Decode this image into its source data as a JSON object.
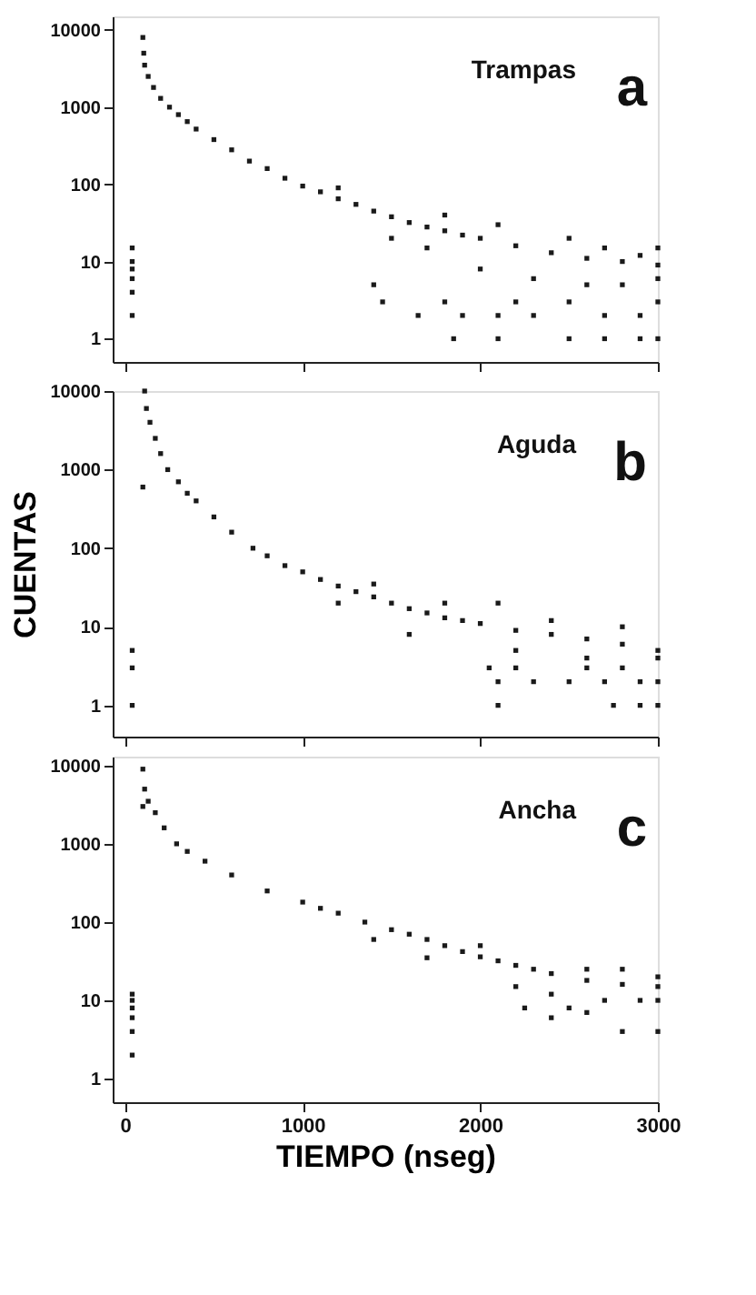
{
  "chart_data": [
    {
      "type": "scatter",
      "annotations": [
        "Trampas",
        "a"
      ],
      "xlim": [
        -70,
        3000
      ],
      "xticks": [
        {
          "value": 0,
          "label": null
        },
        {
          "value": 1000,
          "label": null
        },
        {
          "value": 2000,
          "label": null
        },
        {
          "value": 3000,
          "label": null
        }
      ],
      "ylim": [
        0.5,
        15000
      ],
      "yticks": [
        1,
        10,
        100,
        1000,
        10000
      ],
      "log": "y",
      "grid": false,
      "marker": "square",
      "tick_labels": "y",
      "series": [
        {
          "color": "#1a1a1a",
          "x": [
            100,
            105,
            110,
            130,
            160,
            200,
            250,
            300,
            350,
            400,
            500,
            600,
            700,
            800,
            900,
            1000,
            1100,
            1200,
            1300,
            1400,
            1500,
            1600,
            1700,
            1800,
            1900,
            2000,
            2200,
            2400,
            2600,
            2800,
            3000,
            1200,
            1500,
            1700,
            1800,
            2000,
            2100,
            2300,
            2500,
            2600,
            2700,
            2800,
            2900,
            3000,
            3000,
            1400,
            1450,
            1650,
            1800,
            1900,
            2100,
            2200,
            2300,
            2500,
            2700,
            2900,
            3000,
            1850,
            2100,
            2500,
            2700,
            2900,
            3000,
            40,
            40,
            40,
            40,
            40,
            40
          ],
          "values": [
            8000,
            5000,
            3500,
            2500,
            1800,
            1300,
            1000,
            800,
            650,
            520,
            380,
            280,
            200,
            160,
            120,
            95,
            80,
            65,
            55,
            45,
            38,
            32,
            28,
            25,
            22,
            20,
            16,
            13,
            11,
            10,
            9,
            90,
            20,
            15,
            40,
            8,
            30,
            6,
            20,
            5,
            15,
            5,
            12,
            15,
            6,
            5,
            3,
            2,
            3,
            2,
            2,
            3,
            2,
            3,
            2,
            2,
            3,
            1,
            1,
            1,
            1,
            1,
            1,
            15,
            10,
            8,
            6,
            4,
            2
          ]
        }
      ]
    },
    {
      "type": "scatter",
      "ylabel": "CUENTAS",
      "annotations": [
        "Aguda",
        "b"
      ],
      "xlim": [
        -70,
        3000
      ],
      "xticks": [
        {
          "value": 0,
          "label": null
        },
        {
          "value": 1000,
          "label": null
        },
        {
          "value": 2000,
          "label": null
        },
        {
          "value": 3000,
          "label": null
        }
      ],
      "ylim": [
        0.4,
        10000
      ],
      "yticks": [
        1,
        10,
        100,
        1000,
        10000
      ],
      "log": "y",
      "grid": false,
      "marker": "square",
      "tick_labels": "y",
      "series": [
        {
          "color": "#1a1a1a",
          "x": [
            110,
            120,
            140,
            170,
            200,
            240,
            300,
            350,
            400,
            500,
            600,
            720,
            800,
            900,
            1000,
            1100,
            1200,
            1300,
            1400,
            1500,
            1600,
            1700,
            1800,
            1900,
            2000,
            2200,
            2400,
            2600,
            2800,
            3000,
            1200,
            1600,
            1800,
            2100,
            2200,
            2400,
            2600,
            2800,
            3000,
            1400,
            2050,
            2100,
            2200,
            2300,
            2500,
            2600,
            2700,
            2800,
            2900,
            3000,
            2100,
            2750,
            2900,
            3000,
            40,
            40,
            40,
            100
          ],
          "values": [
            10000,
            6000,
            4000,
            2500,
            1600,
            1000,
            700,
            500,
            400,
            250,
            160,
            100,
            80,
            60,
            50,
            40,
            33,
            28,
            24,
            20,
            17,
            15,
            13,
            12,
            11,
            9,
            8,
            7,
            6,
            5,
            20,
            8,
            20,
            20,
            5,
            12,
            4,
            10,
            4,
            35,
            3,
            2,
            3,
            2,
            2,
            3,
            2,
            3,
            2,
            2,
            1,
            1,
            1,
            1,
            5,
            3,
            1,
            600
          ]
        }
      ]
    },
    {
      "type": "scatter",
      "xlabel": "TIEMPO (nseg)",
      "annotations": [
        "Ancha",
        "c"
      ],
      "xlim": [
        -70,
        3000
      ],
      "xticks": [
        0,
        1000,
        2000,
        3000
      ],
      "ylim": [
        0.5,
        13000
      ],
      "yticks": [
        1,
        10,
        100,
        1000,
        10000
      ],
      "log": "y",
      "grid": false,
      "marker": "square",
      "series": [
        {
          "color": "#1a1a1a",
          "x": [
            100,
            110,
            130,
            170,
            220,
            290,
            350,
            450,
            600,
            800,
            1000,
            1100,
            1200,
            1350,
            1500,
            1600,
            1700,
            1800,
            1900,
            2000,
            2100,
            2200,
            2300,
            2400,
            2600,
            2800,
            3000,
            1400,
            1700,
            2000,
            2200,
            2400,
            2600,
            2700,
            2800,
            2900,
            3000,
            3000,
            2250,
            2400,
            2500,
            2800,
            3000,
            2600,
            40,
            40,
            40,
            40,
            40,
            40,
            100
          ],
          "values": [
            9000,
            5000,
            3500,
            2500,
            1600,
            1000,
            800,
            600,
            400,
            250,
            180,
            150,
            130,
            100,
            80,
            70,
            60,
            50,
            42,
            36,
            32,
            28,
            25,
            22,
            18,
            16,
            15,
            60,
            35,
            50,
            15,
            12,
            25,
            10,
            25,
            10,
            20,
            10,
            8,
            6,
            8,
            4,
            4,
            7,
            12,
            10,
            8,
            6,
            4,
            2,
            3000
          ]
        }
      ]
    }
  ]
}
